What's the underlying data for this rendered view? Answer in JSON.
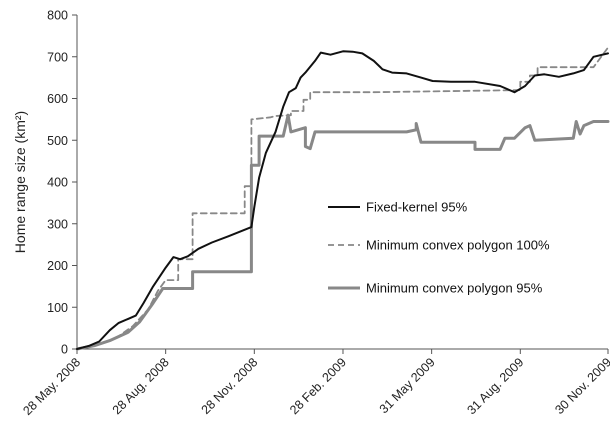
{
  "chart_data": {
    "type": "line",
    "title": "",
    "xlabel": "",
    "ylabel": "Home range size (km²)",
    "ylim": [
      0,
      800
    ],
    "yticks": [
      0,
      100,
      200,
      300,
      400,
      500,
      600,
      700,
      800
    ],
    "xlim": [
      "2008-05-28",
      "2009-11-30"
    ],
    "xticks": [
      "28 May. 2008",
      "28 Aug. 2008",
      "28 Nov. 2008",
      "28 Feb. 2009",
      "31 May 2009",
      "31 Aug. 2009",
      "30 Nov. 2009"
    ],
    "xtick_dates": [
      "2008-05-28",
      "2008-08-28",
      "2008-11-28",
      "2009-02-28",
      "2009-05-31",
      "2009-08-31",
      "2009-11-30"
    ],
    "grid": false,
    "legend": "center-right",
    "series": [
      {
        "name": "Fixed-kernel 95%",
        "style": "solid",
        "color": "#111111",
        "points": [
          [
            "2008-05-28",
            0
          ],
          [
            "2008-06-10",
            8
          ],
          [
            "2008-06-20",
            18
          ],
          [
            "2008-07-01",
            45
          ],
          [
            "2008-07-10",
            62
          ],
          [
            "2008-07-20",
            72
          ],
          [
            "2008-07-28",
            80
          ],
          [
            "2008-08-05",
            110
          ],
          [
            "2008-08-15",
            150
          ],
          [
            "2008-08-28",
            195
          ],
          [
            "2008-09-05",
            220
          ],
          [
            "2008-09-12",
            215
          ],
          [
            "2008-09-20",
            222
          ],
          [
            "2008-10-01",
            240
          ],
          [
            "2008-10-15",
            255
          ],
          [
            "2008-11-01",
            270
          ],
          [
            "2008-11-25",
            292
          ],
          [
            "2008-11-28",
            340
          ],
          [
            "2008-12-03",
            410
          ],
          [
            "2008-12-10",
            470
          ],
          [
            "2008-12-20",
            520
          ],
          [
            "2008-12-28",
            580
          ],
          [
            "2009-01-03",
            615
          ],
          [
            "2009-01-10",
            625
          ],
          [
            "2009-01-15",
            650
          ],
          [
            "2009-01-20",
            662
          ],
          [
            "2009-01-30",
            690
          ],
          [
            "2009-02-05",
            710
          ],
          [
            "2009-02-15",
            705
          ],
          [
            "2009-02-28",
            713
          ],
          [
            "2009-03-10",
            712
          ],
          [
            "2009-03-20",
            708
          ],
          [
            "2009-04-01",
            690
          ],
          [
            "2009-04-10",
            670
          ],
          [
            "2009-04-20",
            662
          ],
          [
            "2009-05-05",
            660
          ],
          [
            "2009-05-20",
            650
          ],
          [
            "2009-06-01",
            642
          ],
          [
            "2009-06-20",
            640
          ],
          [
            "2009-07-15",
            640
          ],
          [
            "2009-08-10",
            630
          ],
          [
            "2009-08-25",
            615
          ],
          [
            "2009-09-05",
            630
          ],
          [
            "2009-09-15",
            655
          ],
          [
            "2009-09-25",
            658
          ],
          [
            "2009-10-10",
            652
          ],
          [
            "2009-10-25",
            660
          ],
          [
            "2009-11-05",
            668
          ],
          [
            "2009-11-15",
            700
          ],
          [
            "2009-11-30",
            708
          ]
        ]
      },
      {
        "name": "Minimum convex polygon 100%",
        "style": "dashed",
        "color": "#888888",
        "points": [
          [
            "2008-05-28",
            0
          ],
          [
            "2008-06-10",
            5
          ],
          [
            "2008-06-25",
            15
          ],
          [
            "2008-07-10",
            30
          ],
          [
            "2008-07-25",
            55
          ],
          [
            "2008-08-10",
            95
          ],
          [
            "2008-08-20",
            140
          ],
          [
            "2008-08-28",
            165
          ],
          [
            "2008-09-10",
            165
          ],
          [
            "2008-09-10",
            215
          ],
          [
            "2008-09-25",
            215
          ],
          [
            "2008-09-25",
            325
          ],
          [
            "2008-11-18",
            325
          ],
          [
            "2008-11-18",
            390
          ],
          [
            "2008-11-25",
            390
          ],
          [
            "2008-11-25",
            550
          ],
          [
            "2008-12-15",
            555
          ],
          [
            "2008-12-20",
            558
          ],
          [
            "2009-01-05",
            560
          ],
          [
            "2009-01-05",
            570
          ],
          [
            "2009-01-18",
            570
          ],
          [
            "2009-01-18",
            597
          ],
          [
            "2009-01-25",
            597
          ],
          [
            "2009-01-25",
            615
          ],
          [
            "2009-04-01",
            615
          ],
          [
            "2009-08-31",
            620
          ],
          [
            "2009-08-31",
            640
          ],
          [
            "2009-09-10",
            640
          ],
          [
            "2009-09-10",
            655
          ],
          [
            "2009-09-18",
            655
          ],
          [
            "2009-09-18",
            675
          ],
          [
            "2009-11-15",
            675
          ],
          [
            "2009-11-30",
            722
          ]
        ]
      },
      {
        "name": "Minimum convex polygon 95%",
        "style": "solid-thick",
        "color": "#888888",
        "points": [
          [
            "2008-05-28",
            0
          ],
          [
            "2008-06-15",
            8
          ],
          [
            "2008-07-01",
            20
          ],
          [
            "2008-07-20",
            40
          ],
          [
            "2008-08-01",
            65
          ],
          [
            "2008-08-15",
            110
          ],
          [
            "2008-08-25",
            145
          ],
          [
            "2008-09-25",
            145
          ],
          [
            "2008-09-25",
            185
          ],
          [
            "2008-11-25",
            185
          ],
          [
            "2008-11-25",
            440
          ],
          [
            "2008-12-03",
            440
          ],
          [
            "2008-12-03",
            510
          ],
          [
            "2008-12-28",
            510
          ],
          [
            "2009-01-02",
            560
          ],
          [
            "2009-01-05",
            520
          ],
          [
            "2009-01-20",
            530
          ],
          [
            "2009-01-20",
            485
          ],
          [
            "2009-01-25",
            480
          ],
          [
            "2009-01-30",
            520
          ],
          [
            "2009-05-05",
            520
          ],
          [
            "2009-05-15",
            525
          ],
          [
            "2009-05-15",
            540
          ],
          [
            "2009-05-20",
            495
          ],
          [
            "2009-07-15",
            495
          ],
          [
            "2009-07-15",
            478
          ],
          [
            "2009-08-10",
            478
          ],
          [
            "2009-08-15",
            505
          ],
          [
            "2009-08-25",
            505
          ],
          [
            "2009-09-05",
            530
          ],
          [
            "2009-09-10",
            535
          ],
          [
            "2009-09-15",
            500
          ],
          [
            "2009-10-25",
            505
          ],
          [
            "2009-10-28",
            545
          ],
          [
            "2009-11-01",
            515
          ],
          [
            "2009-11-05",
            535
          ],
          [
            "2009-11-15",
            545
          ],
          [
            "2009-11-30",
            545
          ]
        ]
      }
    ]
  }
}
